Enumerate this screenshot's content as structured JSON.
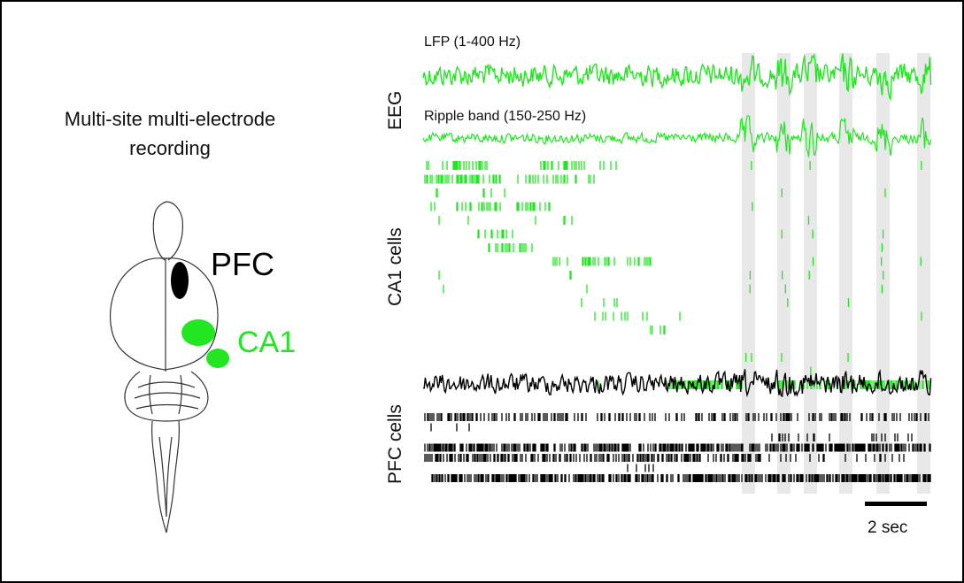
{
  "left_panel": {
    "title_line1": "Multi-site multi-electrode",
    "title_line2": "recording",
    "pfc_label": "PFC",
    "ca1_label": "CA1"
  },
  "traces": {
    "lfp_label": "LFP (1-400 Hz)",
    "ripple_label": "Ripple band (150-250 Hz)",
    "eeg_label": "EEG",
    "ca1_cells_label": "CA1 cells",
    "pfc_cells_label": "PFC cells",
    "scale_label": "2 sec"
  },
  "colors": {
    "ca1": "#22e622",
    "pfc": "#000000",
    "ripple_highlight": "#e8e8e8"
  }
}
